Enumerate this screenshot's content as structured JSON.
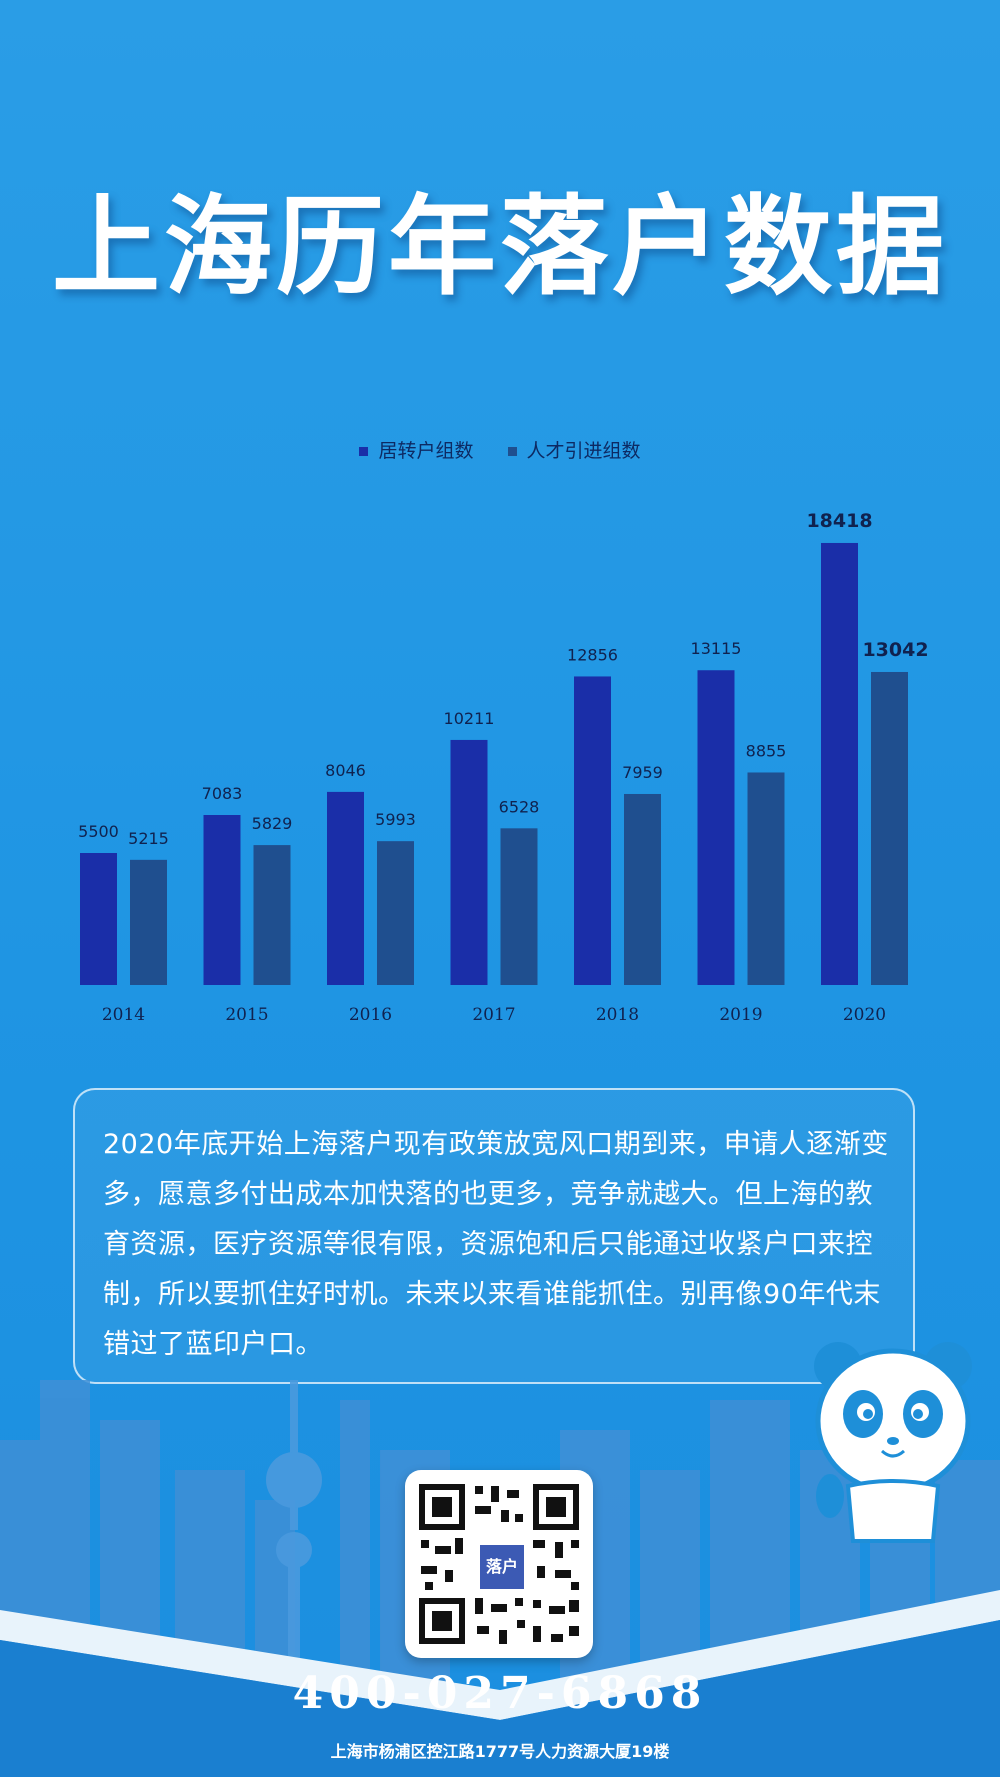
{
  "title": "上海历年落户数据",
  "colors": {
    "series1": "#1a2ea8",
    "series2": "#1f4f8f",
    "background": "#1f95e3"
  },
  "chart_data": {
    "type": "bar",
    "title": "",
    "xlabel": "",
    "ylabel": "",
    "ylim": [
      0,
      20000
    ],
    "grid": false,
    "legend_position": "top-center",
    "categories": [
      "2014",
      "2015",
      "2016",
      "2017",
      "2018",
      "2019",
      "2020"
    ],
    "series": [
      {
        "name": "居转户组数",
        "values": [
          5500,
          7083,
          8046,
          10211,
          12856,
          13115,
          18418
        ]
      },
      {
        "name": "人才引进组数",
        "values": [
          5215,
          5829,
          5993,
          6528,
          7959,
          8855,
          13042
        ]
      }
    ]
  },
  "description": "2020年底开始上海落户现有政策放宽风口期到来，申请人逐渐变多，愿意多付出成本加快落的也更多，竞争就越大。但上海的教育资源，医疗资源等很有限，资源饱和后只能通过收紧户口来控制，所以要抓住好时机。未来以来看谁能抓住。别再像90年代末错过了蓝印户口。",
  "qr_logo_text": "落户",
  "phone": "400-027-6868",
  "address": "上海市杨浦区控江路1777号人力资源大厦19楼"
}
